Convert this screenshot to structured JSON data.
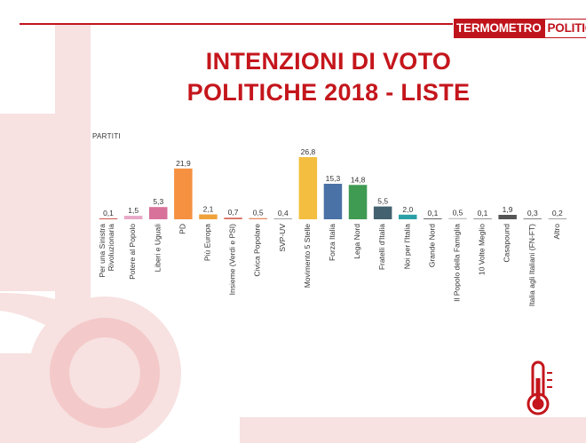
{
  "brand": {
    "part1": "TERMOMETRO",
    "part2": "POLITICO"
  },
  "title_line1": "INTENZIONI DI VOTO",
  "title_line2": "POLITICHE 2018 - LISTE",
  "colors": {
    "accent": "#c4161c",
    "bg_pink": "#f7e1e1"
  },
  "chart_data": {
    "type": "bar",
    "title": "INTENZIONI DI VOTO POLITICHE 2018 - LISTE",
    "xlabel": "PARTITI",
    "ylabel": "",
    "ylim": [
      0,
      26.8
    ],
    "grid": false,
    "categories": [
      [
        "Per una Sinistra",
        "Rivoluzionaria"
      ],
      [
        "Potere al Popolo"
      ],
      [
        "Liberi e Uguali"
      ],
      [
        "PD"
      ],
      [
        "Più Europa"
      ],
      [
        "Insieme (Verdi e PSI)"
      ],
      [
        "Civica Popolare"
      ],
      [
        "SVP-UV"
      ],
      [
        "Movimento 5 Stelle"
      ],
      [
        "Forza Italia"
      ],
      [
        "Lega Nord"
      ],
      [
        "Fratelli d'Italia"
      ],
      [
        "Noi per l'Italia"
      ],
      [
        "Grande Nord"
      ],
      [
        "Il Popolo della Famiglia"
      ],
      [
        "10 Volte Meglio"
      ],
      [
        "Casapound"
      ],
      [
        "Italia agli Italiani (FN-FT)"
      ],
      [
        "Altro"
      ]
    ],
    "values": [
      0.1,
      1.5,
      5.3,
      21.9,
      2.1,
      0.7,
      0.5,
      0.4,
      26.8,
      15.3,
      14.8,
      5.5,
      2.0,
      0.1,
      0.5,
      0.1,
      1.9,
      0.3,
      0.2
    ],
    "value_labels": [
      "0,1",
      "1,5",
      "5,3",
      "21,9",
      "2,1",
      "0,7",
      "0,5",
      "0,4",
      "26,8",
      "15,3",
      "14,8",
      "5,5",
      "2,0",
      "0,1",
      "0,5",
      "0,1",
      "1,9",
      "0,3",
      "0,2"
    ],
    "bar_colors": [
      "#c8453a",
      "#e8a8c6",
      "#d8729a",
      "#f59140",
      "#f0a23a",
      "#d96b5e",
      "#e58a60",
      "#a1a1a1",
      "#f4bf40",
      "#4a72a6",
      "#3f9a52",
      "#43616e",
      "#2aa0a6",
      "#555555",
      "#c0c0c0",
      "#888888",
      "#555555",
      "#777777",
      "#999999"
    ]
  }
}
